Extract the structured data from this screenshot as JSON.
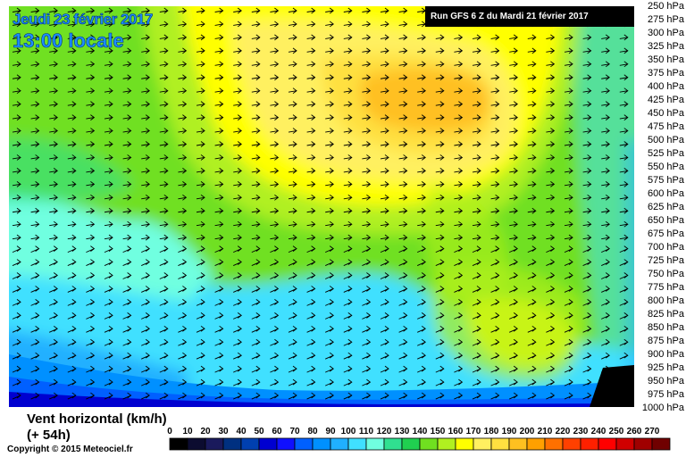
{
  "title": {
    "date": "Jeudi 23 février 2017",
    "time": "13:00 locale",
    "run": "Run GFS 6 Z du Mardi 21 février 2017"
  },
  "levels": [
    "250 hPa",
    "275 hPa",
    "300 hPa",
    "325 hPa",
    "350 hPa",
    "375 hPa",
    "400 hPa",
    "425 hPa",
    "450 hPa",
    "475 hPa",
    "500 hPa",
    "525 hPa",
    "550 hPa",
    "575 hPa",
    "600 hPa",
    "625 hPa",
    "650 hPa",
    "675 hPa",
    "700 hPa",
    "725 hPa",
    "750 hPa",
    "775 hPa",
    "800 hPa",
    "825 hPa",
    "850 hPa",
    "875 hPa",
    "900 hPa",
    "925 hPa",
    "950 hPa",
    "975 hPa",
    "1000 hPa"
  ],
  "legend": {
    "title": "Vent horizontal (km/h)",
    "subtitle": "(+ 54h)",
    "values": [
      "0",
      "10",
      "20",
      "30",
      "40",
      "50",
      "60",
      "70",
      "80",
      "90",
      "100",
      "110",
      "120",
      "130",
      "140",
      "150",
      "160",
      "170",
      "180",
      "190",
      "200",
      "210",
      "220",
      "230",
      "240",
      "250",
      "260",
      "270"
    ],
    "colors": [
      "#000000",
      "#0c0c30",
      "#1a1a5c",
      "#003080",
      "#0040b0",
      "#0000d0",
      "#1010ff",
      "#0060ff",
      "#0090ff",
      "#20b0ff",
      "#40e0ff",
      "#70ffe0",
      "#30e090",
      "#20d050",
      "#70e020",
      "#b0f020",
      "#ffff00",
      "#fff060",
      "#ffe040",
      "#ffc020",
      "#ffa000",
      "#ff7000",
      "#ff4000",
      "#ff2000",
      "#ff0000",
      "#d00000",
      "#a00000",
      "#700000"
    ]
  },
  "copyright": "Copyright © 2015 Meteociel.fr"
}
